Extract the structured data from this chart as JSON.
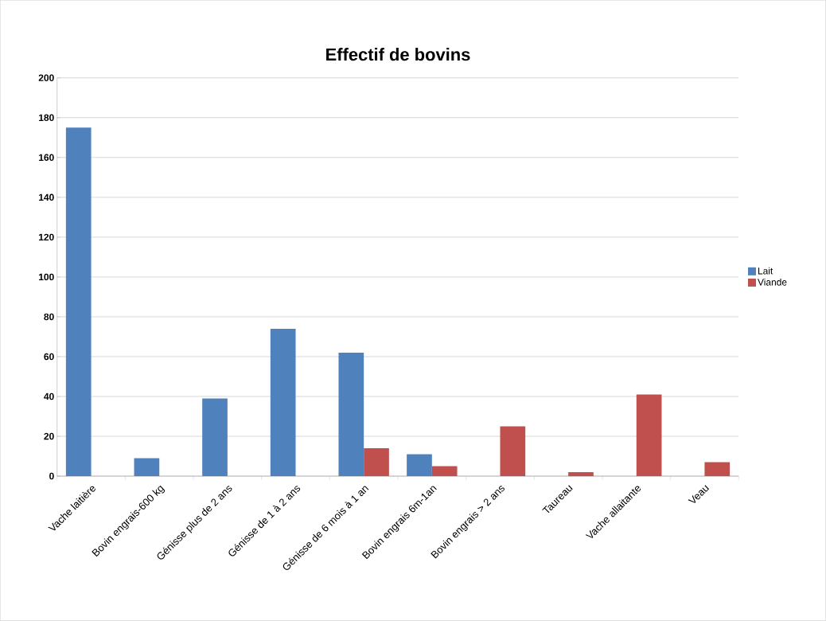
{
  "chart_data": {
    "type": "bar",
    "title": "Effectif de bovins",
    "categories": [
      "Vache laitière",
      "Bovin engrais-600 kg",
      "Génisse plus de 2 ans",
      "Génisse de 1 à 2 ans",
      "Génisse de 6 mois à 1 an",
      "Bovin engrais 6m-1an",
      "Bovin engrais > 2 ans",
      "Taureau",
      "Vache allaitante",
      "Veau"
    ],
    "series": [
      {
        "name": "Lait",
        "color": "#4f81bd",
        "values": [
          175,
          9,
          39,
          74,
          62,
          11,
          null,
          null,
          null,
          null
        ]
      },
      {
        "name": "Viande",
        "color": "#c0504d",
        "values": [
          null,
          null,
          null,
          null,
          14,
          5,
          25,
          2,
          41,
          7
        ]
      }
    ],
    "ylim": [
      0,
      200
    ],
    "yticks": [
      0,
      20,
      40,
      60,
      80,
      100,
      120,
      140,
      160,
      180,
      200
    ],
    "grid": "y",
    "legend": "right"
  }
}
